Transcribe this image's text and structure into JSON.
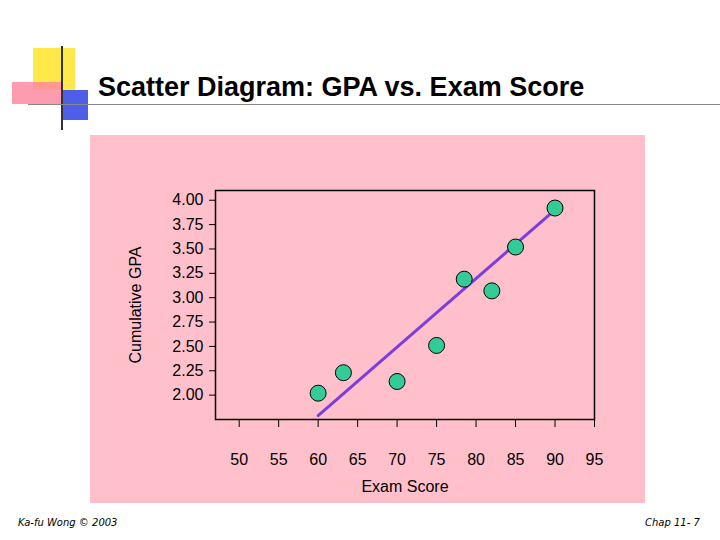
{
  "chart_data": {
    "type": "scatter",
    "title": "Scatter Diagram: GPA vs. Exam Score",
    "x_label": "Exam Score",
    "y_label": "Cumulative GPA",
    "x": [
      60,
      63.2,
      70,
      75,
      78.5,
      82,
      85,
      90
    ],
    "values": [
      2.02,
      2.23,
      2.14,
      2.51,
      3.19,
      3.07,
      3.52,
      3.92
    ],
    "color": "#33cc99",
    "marker": "circle",
    "trend_line": {
      "x": [
        60,
        90
      ],
      "values": [
        1.79,
        3.9
      ],
      "color": "#7b3fe0"
    },
    "xlim": [
      47,
      95
    ],
    "xticks": [
      50,
      55,
      60,
      65,
      70,
      75,
      80,
      85,
      90,
      95
    ],
    "ylim": [
      1.75,
      4.1
    ],
    "yticks": [
      {
        "value": 2,
        "label": "2.00"
      },
      {
        "value": 2.25,
        "label": "2.25"
      },
      {
        "value": 2.5,
        "label": "2.50"
      },
      {
        "value": 2.75,
        "label": "2.75"
      },
      {
        "value": 3,
        "label": "3.00"
      },
      {
        "value": 3.25,
        "label": "3.25"
      },
      {
        "value": 3.5,
        "label": "3.50"
      },
      {
        "value": 3.75,
        "label": "3.75"
      },
      {
        "value": 4,
        "label": "4.00"
      }
    ],
    "grid": false,
    "footer_left": "Ka-fu Wong © 2003",
    "footer_right": "Chap 11- 7"
  }
}
